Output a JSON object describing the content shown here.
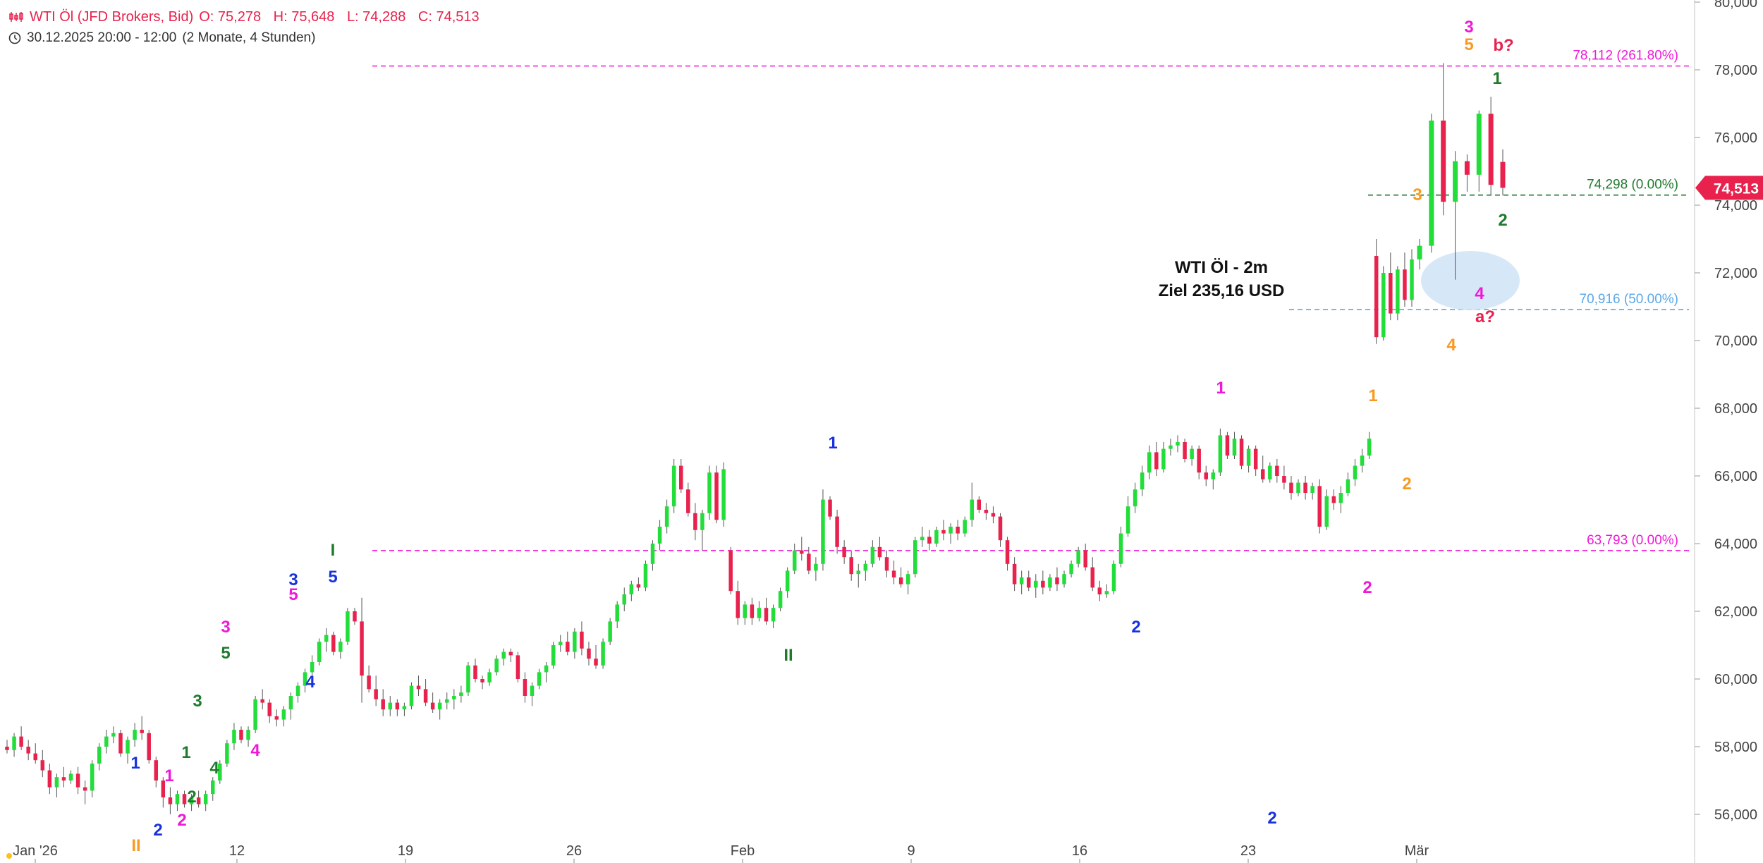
{
  "header": {
    "instrument": "WTI Öl (JFD Brokers, Bid)",
    "open": "O: 75,278",
    "high": "H: 75,648",
    "low": "L: 74,288",
    "close": "C: 74,513",
    "range": "30.12.2025 20:00 - 12:00",
    "span": "(2 Monate, 4 Stunden)",
    "icons": [
      "candlestick-chart-icon",
      "clock-icon"
    ]
  },
  "chart_data": {
    "type": "candlestick",
    "title": "WTI Öl - 2m",
    "subtitle": "Ziel 235,16 USD",
    "ylim": [
      55000,
      80000
    ],
    "y_ticks": [
      "56,000",
      "58,000",
      "60,000",
      "62,000",
      "64,000",
      "66,000",
      "68,000",
      "70,000",
      "72,000",
      "74,000",
      "76,000",
      "78,000",
      "80,000"
    ],
    "x_ticks": [
      "Jan '26",
      "12",
      "19",
      "26",
      "Feb",
      "9",
      "16",
      "23",
      "Mär"
    ],
    "last_price": "74,513",
    "colors": {
      "up": "#22dd3a",
      "down": "#e8224d",
      "magenta": "#f018d8",
      "blue": "#1832e0",
      "green": "#1f7a2e",
      "orange": "#f79a22",
      "red": "#e8224d",
      "lightblue": "#5aa8e8"
    },
    "levels": [
      {
        "label": "78,112 (261.80%)",
        "value": 78112,
        "color": "#f018d8"
      },
      {
        "label": "74,298 (0.00%)",
        "value": 74298,
        "color": "#1f7a2e"
      },
      {
        "label": "70,916 (50.00%)",
        "value": 70916,
        "color": "#5aa8e8"
      },
      {
        "label": "63,793 (0.00%)",
        "value": 63793,
        "color": "#f018d8"
      }
    ],
    "candles": [
      [
        58000,
        58200,
        57800,
        57900
      ],
      [
        57900,
        58400,
        57700,
        58300
      ],
      [
        58300,
        58600,
        57900,
        58000
      ],
      [
        58000,
        58200,
        57600,
        57800
      ],
      [
        57800,
        58100,
        57500,
        57600
      ],
      [
        57600,
        57900,
        57100,
        57300
      ],
      [
        57300,
        57500,
        56600,
        56800
      ],
      [
        56800,
        57200,
        56500,
        57100
      ],
      [
        57100,
        57400,
        56800,
        57000
      ],
      [
        57000,
        57300,
        56900,
        57200
      ],
      [
        57200,
        57400,
        56600,
        56800
      ],
      [
        56800,
        57000,
        56300,
        56700
      ],
      [
        56700,
        57600,
        56500,
        57500
      ],
      [
        57500,
        58100,
        57300,
        58000
      ],
      [
        58000,
        58500,
        57800,
        58300
      ],
      [
        58300,
        58600,
        58100,
        58400
      ],
      [
        58400,
        58500,
        57700,
        57800
      ],
      [
        57800,
        58300,
        57500,
        58200
      ],
      [
        58200,
        58700,
        58000,
        58500
      ],
      [
        58500,
        58900,
        58200,
        58400
      ],
      [
        58400,
        58500,
        57500,
        57600
      ],
      [
        57600,
        57700,
        56800,
        57000
      ],
      [
        57000,
        57100,
        56200,
        56500
      ],
      [
        56500,
        56800,
        56000,
        56300
      ],
      [
        56300,
        56700,
        56100,
        56600
      ],
      [
        56600,
        56700,
        56200,
        56300
      ],
      [
        56300,
        56600,
        56100,
        56500
      ],
      [
        56500,
        56700,
        56200,
        56300
      ],
      [
        56300,
        56700,
        56100,
        56600
      ],
      [
        56600,
        57100,
        56400,
        57000
      ],
      [
        57000,
        57600,
        56900,
        57500
      ],
      [
        57500,
        58200,
        57400,
        58100
      ],
      [
        58100,
        58700,
        57900,
        58500
      ],
      [
        58500,
        58600,
        58100,
        58200
      ],
      [
        58200,
        58600,
        58000,
        58500
      ],
      [
        58500,
        59500,
        58400,
        59400
      ],
      [
        59400,
        59700,
        59100,
        59300
      ],
      [
        59300,
        59400,
        58700,
        58900
      ],
      [
        58900,
        59100,
        58600,
        58800
      ],
      [
        58800,
        59200,
        58600,
        59100
      ],
      [
        59100,
        59600,
        58800,
        59500
      ],
      [
        59500,
        59900,
        59300,
        59800
      ],
      [
        59800,
        60300,
        59600,
        60200
      ],
      [
        60200,
        60700,
        60000,
        60500
      ],
      [
        60500,
        61200,
        60400,
        61100
      ],
      [
        61100,
        61500,
        60800,
        61300
      ],
      [
        61300,
        61400,
        60700,
        60800
      ],
      [
        60800,
        61200,
        60600,
        61100
      ],
      [
        61100,
        62100,
        61000,
        62000
      ],
      [
        62000,
        62100,
        61600,
        61700
      ],
      [
        61700,
        62400,
        59300,
        60100
      ],
      [
        60100,
        60400,
        59600,
        59700
      ],
      [
        59700,
        60100,
        59200,
        59400
      ],
      [
        59400,
        59700,
        58900,
        59100
      ],
      [
        59100,
        59500,
        58900,
        59300
      ],
      [
        59300,
        59400,
        58900,
        59100
      ],
      [
        59100,
        59300,
        58900,
        59200
      ],
      [
        59200,
        59900,
        59100,
        59800
      ],
      [
        59800,
        60100,
        59500,
        59700
      ],
      [
        59700,
        60000,
        59200,
        59300
      ],
      [
        59300,
        59600,
        59000,
        59100
      ],
      [
        59100,
        59400,
        58800,
        59300
      ],
      [
        59300,
        59600,
        59100,
        59400
      ],
      [
        59400,
        59700,
        59100,
        59500
      ],
      [
        59500,
        59800,
        59300,
        59600
      ],
      [
        59600,
        60500,
        59500,
        60400
      ],
      [
        60400,
        60600,
        59900,
        60000
      ],
      [
        60000,
        60100,
        59700,
        59900
      ],
      [
        59900,
        60300,
        59800,
        60200
      ],
      [
        60200,
        60700,
        60100,
        60600
      ],
      [
        60600,
        60900,
        60400,
        60800
      ],
      [
        60800,
        60900,
        60500,
        60700
      ],
      [
        60700,
        60800,
        59900,
        60000
      ],
      [
        60000,
        60200,
        59300,
        59500
      ],
      [
        59500,
        59900,
        59200,
        59800
      ],
      [
        59800,
        60300,
        59700,
        60200
      ],
      [
        60200,
        60500,
        59900,
        60400
      ],
      [
        60400,
        61100,
        60300,
        61000
      ],
      [
        61000,
        61300,
        60800,
        61100
      ],
      [
        61100,
        61400,
        60700,
        60800
      ],
      [
        60800,
        61500,
        60600,
        61400
      ],
      [
        61400,
        61700,
        60700,
        60900
      ],
      [
        60900,
        61100,
        60400,
        60600
      ],
      [
        60600,
        61000,
        60300,
        60400
      ],
      [
        60400,
        61200,
        60300,
        61100
      ],
      [
        61100,
        61800,
        61000,
        61700
      ],
      [
        61700,
        62300,
        61500,
        62200
      ],
      [
        62200,
        62700,
        62000,
        62500
      ],
      [
        62500,
        62900,
        62300,
        62800
      ],
      [
        62800,
        63000,
        62600,
        62700
      ],
      [
        62700,
        63500,
        62600,
        63400
      ],
      [
        63400,
        64100,
        63200,
        64000
      ],
      [
        64000,
        64700,
        63800,
        64500
      ],
      [
        64500,
        65300,
        64300,
        65100
      ],
      [
        65100,
        66500,
        64900,
        66300
      ],
      [
        66300,
        66500,
        65500,
        65600
      ],
      [
        65600,
        65800,
        64800,
        64900
      ],
      [
        64900,
        65200,
        64100,
        64400
      ],
      [
        64400,
        65000,
        63800,
        64900
      ],
      [
        64900,
        66300,
        64700,
        66100
      ],
      [
        66100,
        66300,
        64600,
        64700
      ],
      [
        64700,
        66400,
        64500,
        66200
      ],
      [
        63800,
        63900,
        62500,
        62600
      ],
      [
        62600,
        62900,
        61600,
        61800
      ],
      [
        61800,
        62300,
        61600,
        62200
      ],
      [
        62200,
        62400,
        61600,
        61800
      ],
      [
        61800,
        62300,
        61700,
        62100
      ],
      [
        62100,
        62400,
        61600,
        61700
      ],
      [
        61700,
        62200,
        61500,
        62100
      ],
      [
        62100,
        62700,
        62000,
        62600
      ],
      [
        62600,
        63300,
        62400,
        63200
      ],
      [
        63200,
        64000,
        63100,
        63800
      ],
      [
        63800,
        64200,
        63500,
        63700
      ],
      [
        63700,
        63900,
        63100,
        63200
      ],
      [
        63200,
        63600,
        62900,
        63400
      ],
      [
        63400,
        65600,
        63200,
        65300
      ],
      [
        65300,
        65400,
        64700,
        64800
      ],
      [
        64800,
        65000,
        63700,
        63900
      ],
      [
        63900,
        64100,
        63400,
        63600
      ],
      [
        63600,
        63800,
        62900,
        63100
      ],
      [
        63100,
        63400,
        62700,
        63200
      ],
      [
        63200,
        63500,
        62900,
        63400
      ],
      [
        63400,
        64100,
        63300,
        63900
      ],
      [
        63900,
        64200,
        63500,
        63600
      ],
      [
        63600,
        63800,
        63000,
        63200
      ],
      [
        63200,
        63500,
        62800,
        63000
      ],
      [
        63000,
        63300,
        62700,
        62800
      ],
      [
        62800,
        63200,
        62500,
        63100
      ],
      [
        63100,
        64200,
        63000,
        64100
      ],
      [
        64100,
        64500,
        63900,
        64200
      ],
      [
        64200,
        64400,
        63800,
        64000
      ],
      [
        64000,
        64500,
        63900,
        64400
      ],
      [
        64400,
        64700,
        64100,
        64300
      ],
      [
        64300,
        64600,
        64000,
        64500
      ],
      [
        64500,
        64700,
        64100,
        64300
      ],
      [
        64300,
        64800,
        64200,
        64700
      ],
      [
        64700,
        65800,
        64500,
        65300
      ],
      [
        65300,
        65400,
        64900,
        65000
      ],
      [
        65000,
        65200,
        64700,
        64900
      ],
      [
        64900,
        65100,
        64600,
        64800
      ],
      [
        64800,
        64900,
        63900,
        64100
      ],
      [
        64100,
        64200,
        63200,
        63400
      ],
      [
        63400,
        63600,
        62600,
        62800
      ],
      [
        62800,
        63200,
        62500,
        63000
      ],
      [
        63000,
        63200,
        62600,
        62700
      ],
      [
        62700,
        63100,
        62400,
        62900
      ],
      [
        62900,
        63200,
        62500,
        62700
      ],
      [
        62700,
        63100,
        62600,
        63000
      ],
      [
        63000,
        63300,
        62600,
        62800
      ],
      [
        62800,
        63200,
        62700,
        63100
      ],
      [
        63100,
        63500,
        63000,
        63400
      ],
      [
        63400,
        63900,
        63300,
        63800
      ],
      [
        63800,
        64000,
        63200,
        63300
      ],
      [
        63300,
        63600,
        62600,
        62700
      ],
      [
        62700,
        62900,
        62300,
        62500
      ],
      [
        62500,
        62800,
        62400,
        62600
      ],
      [
        62600,
        63500,
        62500,
        63400
      ],
      [
        63400,
        64500,
        63300,
        64300
      ],
      [
        64300,
        65400,
        64200,
        65100
      ],
      [
        65100,
        65800,
        64900,
        65600
      ],
      [
        65600,
        66300,
        65400,
        66100
      ],
      [
        66100,
        66900,
        65900,
        66700
      ],
      [
        66700,
        67000,
        66000,
        66200
      ],
      [
        66200,
        67000,
        66100,
        66800
      ],
      [
        66800,
        67100,
        66600,
        66900
      ],
      [
        66900,
        67200,
        66700,
        67000
      ],
      [
        67000,
        67100,
        66400,
        66500
      ],
      [
        66500,
        66900,
        66300,
        66800
      ],
      [
        66800,
        66900,
        65900,
        66100
      ],
      [
        66100,
        66300,
        65700,
        65900
      ],
      [
        65900,
        66200,
        65600,
        66100
      ],
      [
        66100,
        67400,
        66000,
        67200
      ],
      [
        67200,
        67300,
        66500,
        66600
      ],
      [
        66600,
        67300,
        66500,
        67100
      ],
      [
        67100,
        67200,
        66200,
        66300
      ],
      [
        66300,
        66900,
        66100,
        66800
      ],
      [
        66800,
        66900,
        66000,
        66200
      ],
      [
        66200,
        66600,
        65800,
        65900
      ],
      [
        65900,
        66400,
        65800,
        66300
      ],
      [
        66300,
        66500,
        65800,
        66000
      ],
      [
        66000,
        66300,
        65600,
        65800
      ],
      [
        65800,
        66000,
        65300,
        65500
      ],
      [
        65500,
        65900,
        65400,
        65800
      ],
      [
        65800,
        66000,
        65300,
        65500
      ],
      [
        65500,
        65800,
        65300,
        65700
      ],
      [
        65700,
        65900,
        64300,
        64500
      ],
      [
        64500,
        65600,
        64400,
        65400
      ],
      [
        65400,
        65600,
        65000,
        65200
      ],
      [
        65200,
        65700,
        64900,
        65500
      ],
      [
        65500,
        66100,
        65400,
        65900
      ],
      [
        65900,
        66500,
        65700,
        66300
      ],
      [
        66300,
        66800,
        66100,
        66600
      ],
      [
        66600,
        67300,
        66500,
        67100
      ],
      [
        72500,
        73000,
        69900,
        70100
      ],
      [
        70100,
        72200,
        70000,
        72000
      ],
      [
        72000,
        72600,
        70600,
        70800
      ],
      [
        70800,
        72200,
        70600,
        72100
      ],
      [
        72100,
        72600,
        71000,
        71200
      ],
      [
        71200,
        72700,
        71000,
        72400
      ],
      [
        72400,
        73000,
        72100,
        72800
      ],
      [
        72800,
        76700,
        72600,
        76500
      ],
      [
        76500,
        78200,
        73700,
        74100
      ],
      [
        74100,
        75600,
        71800,
        75300
      ],
      [
        75300,
        75500,
        74400,
        74900
      ],
      [
        74900,
        76800,
        74400,
        76700
      ],
      [
        76700,
        77200,
        74300,
        74600
      ],
      [
        75278,
        75648,
        74288,
        74513
      ]
    ],
    "annotations": [
      {
        "text": "1",
        "color": "blue"
      },
      {
        "text": "2",
        "color": "blue"
      },
      {
        "text": "3",
        "color": "blue"
      },
      {
        "text": "4",
        "color": "blue"
      },
      {
        "text": "5",
        "color": "blue"
      },
      {
        "text": "1",
        "color": "blue"
      },
      {
        "text": "2",
        "color": "blue"
      },
      {
        "text": "2",
        "color": "blue"
      },
      {
        "text": "1",
        "color": "magenta"
      },
      {
        "text": "2",
        "color": "magenta"
      },
      {
        "text": "3",
        "color": "magenta"
      },
      {
        "text": "4",
        "color": "magenta"
      },
      {
        "text": "5",
        "color": "magenta"
      },
      {
        "text": "1",
        "color": "magenta"
      },
      {
        "text": "2",
        "color": "magenta"
      },
      {
        "text": "3",
        "color": "magenta"
      },
      {
        "text": "4",
        "color": "magenta"
      },
      {
        "text": "1",
        "color": "green"
      },
      {
        "text": "2",
        "color": "green"
      },
      {
        "text": "3",
        "color": "green"
      },
      {
        "text": "4",
        "color": "green"
      },
      {
        "text": "5",
        "color": "green"
      },
      {
        "text": "I",
        "color": "green"
      },
      {
        "text": "II",
        "color": "green"
      },
      {
        "text": "1",
        "color": "green"
      },
      {
        "text": "2",
        "color": "green"
      },
      {
        "text": "II",
        "color": "orange"
      },
      {
        "text": "1",
        "color": "orange"
      },
      {
        "text": "2",
        "color": "orange"
      },
      {
        "text": "3",
        "color": "orange"
      },
      {
        "text": "4",
        "color": "orange"
      },
      {
        "text": "5",
        "color": "orange"
      },
      {
        "text": "b?",
        "color": "red"
      },
      {
        "text": "a?",
        "color": "red"
      }
    ]
  }
}
